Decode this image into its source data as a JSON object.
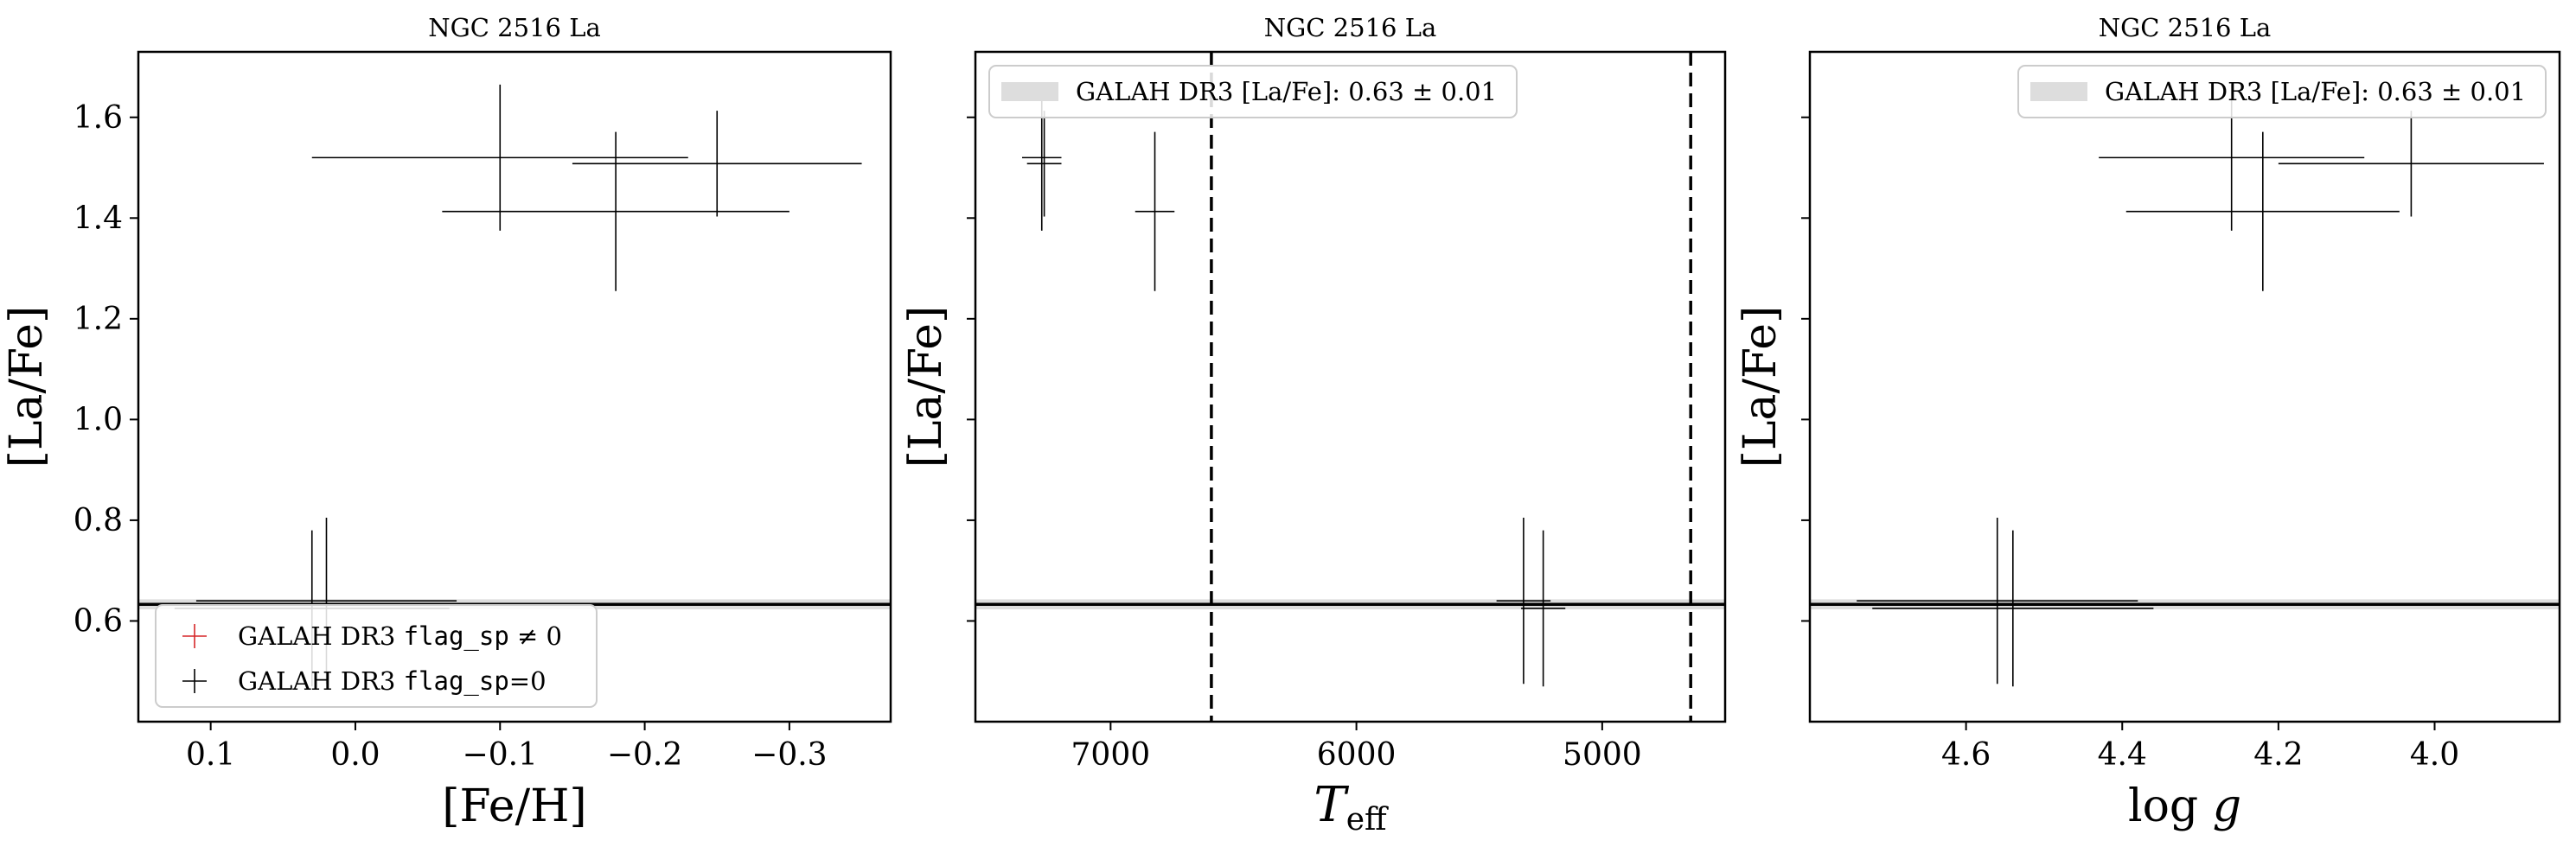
{
  "chart_data": [
    {
      "type": "scatter",
      "title": "NGC 2516 La",
      "xlabel": "[Fe/H]",
      "ylabel": "[La/Fe]",
      "xlim": [
        0.15,
        -0.37
      ],
      "ylim": [
        0.4,
        1.73
      ],
      "x_inverted": true,
      "xticks": [
        0.1,
        0.0,
        -0.1,
        -0.2,
        -0.3
      ],
      "xtick_labels": [
        "0.1",
        "0.0",
        "−0.1",
        "−0.2",
        "−0.3"
      ],
      "yticks": [
        0.6,
        0.8,
        1.0,
        1.2,
        1.4,
        1.6
      ],
      "ytick_labels": [
        "0.6",
        "0.8",
        "1.0",
        "1.2",
        "1.4",
        "1.6"
      ],
      "show_ytick_labels": true,
      "reference_line": 0.633,
      "galah_band": [
        0.623,
        0.643
      ],
      "vlines": [],
      "legend": {
        "position": "lower-left",
        "entries": [
          {
            "marker": "plus",
            "color": "#d62728",
            "pre": "GALAH DR3 ",
            "code": "flag_sp",
            "post": " ≠ 0"
          },
          {
            "marker": "plus",
            "color": "#000000",
            "pre": "GALAH DR3 ",
            "code": "flag_sp",
            "post": "=0"
          }
        ]
      },
      "points": [
        {
          "x": 0.03,
          "y": 0.625,
          "xerr": 0.095,
          "yerr": 0.155,
          "color": "#000000"
        },
        {
          "x": 0.02,
          "y": 0.64,
          "xerr": 0.09,
          "yerr": 0.165,
          "color": "#000000"
        },
        {
          "x": -0.1,
          "y": 1.52,
          "xerr": 0.13,
          "yerr": 0.145,
          "color": "#000000"
        },
        {
          "x": -0.18,
          "y": 1.413,
          "xerr": 0.12,
          "yerr": 0.158,
          "color": "#000000"
        },
        {
          "x": -0.25,
          "y": 1.508,
          "xerr": 0.1,
          "yerr": 0.105,
          "color": "#000000"
        }
      ]
    },
    {
      "type": "scatter",
      "title": "NGC 2516 La",
      "xlabel": "T_eff",
      "ylabel": "[La/Fe]",
      "xlim": [
        7550,
        4500
      ],
      "ylim": [
        0.4,
        1.73
      ],
      "x_inverted": true,
      "xticks": [
        7000,
        6000,
        5000
      ],
      "xtick_labels": [
        "7000",
        "6000",
        "5000"
      ],
      "yticks": [
        0.6,
        0.8,
        1.0,
        1.2,
        1.4,
        1.6
      ],
      "ytick_labels": [
        "0.6",
        "0.8",
        "1.0",
        "1.2",
        "1.4",
        "1.6"
      ],
      "show_ytick_labels": false,
      "reference_line": 0.633,
      "galah_band": [
        0.623,
        0.643
      ],
      "vlines": [
        6590,
        4640
      ],
      "legend": {
        "position": "upper-left",
        "entries": [
          {
            "marker": "band",
            "color": "#dddddd",
            "pre": "GALAH DR3 [La/Fe]: 0.63 ± 0.01",
            "code": "",
            "post": ""
          }
        ]
      },
      "points": [
        {
          "x": 7280,
          "y": 1.52,
          "xerr": 80,
          "yerr": 0.145,
          "color": "#000000"
        },
        {
          "x": 7270,
          "y": 1.508,
          "xerr": 70,
          "yerr": 0.105,
          "color": "#000000"
        },
        {
          "x": 6820,
          "y": 1.413,
          "xerr": 80,
          "yerr": 0.158,
          "color": "#000000"
        },
        {
          "x": 5320,
          "y": 0.64,
          "xerr": 110,
          "yerr": 0.165,
          "color": "#000000"
        },
        {
          "x": 5240,
          "y": 0.625,
          "xerr": 90,
          "yerr": 0.155,
          "color": "#000000"
        }
      ]
    },
    {
      "type": "scatter",
      "title": "NGC 2516 La",
      "xlabel": "log g",
      "ylabel": "[La/Fe]",
      "xlim": [
        4.8,
        3.84
      ],
      "ylim": [
        0.4,
        1.73
      ],
      "x_inverted": true,
      "xticks": [
        4.6,
        4.4,
        4.2,
        4.0
      ],
      "xtick_labels": [
        "4.6",
        "4.4",
        "4.2",
        "4.0"
      ],
      "yticks": [
        0.6,
        0.8,
        1.0,
        1.2,
        1.4,
        1.6
      ],
      "ytick_labels": [
        "0.6",
        "0.8",
        "1.0",
        "1.2",
        "1.4",
        "1.6"
      ],
      "show_ytick_labels": false,
      "reference_line": 0.633,
      "galah_band": [
        0.623,
        0.643
      ],
      "vlines": [],
      "legend": {
        "position": "upper-right",
        "entries": [
          {
            "marker": "band",
            "color": "#dddddd",
            "pre": "GALAH DR3 [La/Fe]: 0.63 ± 0.01",
            "code": "",
            "post": ""
          }
        ]
      },
      "points": [
        {
          "x": 4.56,
          "y": 0.64,
          "xerr": 0.18,
          "yerr": 0.165,
          "color": "#000000"
        },
        {
          "x": 4.54,
          "y": 0.625,
          "xerr": 0.18,
          "yerr": 0.155,
          "color": "#000000"
        },
        {
          "x": 4.26,
          "y": 1.52,
          "xerr": 0.17,
          "yerr": 0.145,
          "color": "#000000"
        },
        {
          "x": 4.22,
          "y": 1.413,
          "xerr": 0.175,
          "yerr": 0.158,
          "color": "#000000"
        },
        {
          "x": 4.03,
          "y": 1.508,
          "xerr": 0.17,
          "yerr": 0.105,
          "color": "#000000"
        }
      ]
    }
  ]
}
